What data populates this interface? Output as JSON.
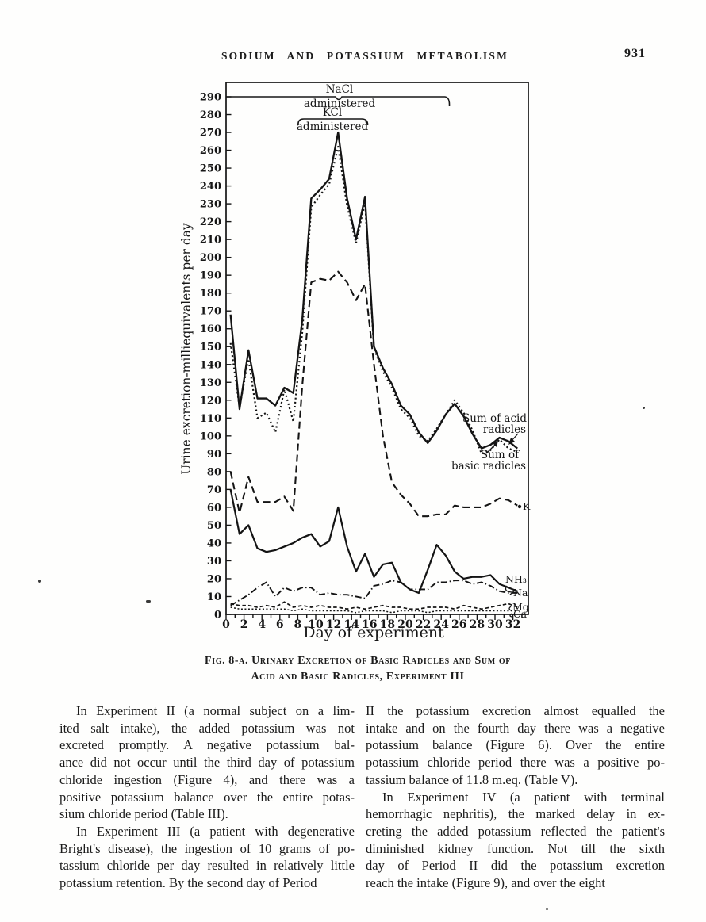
{
  "header": {
    "running_head": "SODIUM AND POTASSIUM METABOLISM",
    "page_number": "931"
  },
  "figure": {
    "annotations": {
      "nacl_line1": "NaCl",
      "nacl_line2": "administered",
      "kcl_line1": "KCl",
      "kcl_line2": "administered"
    },
    "series_labels": {
      "acid_line1": "Sum of acid",
      "acid_line2": "radicles",
      "basic_line1": "Sum of",
      "basic_line2": "basic radicles",
      "k": "K",
      "nh3": "NH₃",
      "na": "Na",
      "mg": "Mg",
      "ca": "Ca"
    },
    "y_axis_label": "Urine excretion-milliequivalents per day",
    "x_axis_label": "Day of experiment",
    "caption_line1": "Fig. 8-a.  Urinary Excretion of Basic Radicles and Sum of",
    "caption_line2": "Acid and Basic Radicles, Experiment III"
  },
  "chart_data": {
    "type": "line",
    "title": "",
    "xlabel": "Day of experiment",
    "ylabel": "Urine excretion-milliequivalents per day",
    "xlim": [
      0,
      33.7
    ],
    "ylim": [
      0,
      298
    ],
    "grid": false,
    "legend_position": "labels-at-line-ends-right",
    "x_ticks": [
      0,
      2,
      4,
      6,
      8,
      10,
      12,
      14,
      16,
      18,
      20,
      22,
      24,
      26,
      28,
      30,
      32
    ],
    "y_ticks": [
      0,
      10,
      20,
      30,
      40,
      50,
      60,
      70,
      80,
      90,
      100,
      110,
      120,
      130,
      140,
      150,
      160,
      170,
      180,
      190,
      200,
      210,
      220,
      230,
      240,
      250,
      260,
      270,
      280,
      290
    ],
    "x": [
      0.5,
      1.5,
      2.5,
      3.5,
      4.5,
      5.5,
      6.5,
      7.5,
      8.5,
      9.5,
      10.5,
      11.5,
      12.5,
      13.5,
      14.5,
      15.5,
      16.5,
      17.5,
      18.5,
      19.5,
      20.5,
      21.5,
      22.5,
      23.5,
      24.5,
      25.5,
      26.5,
      27.5,
      28.5,
      29.5,
      30.5,
      31.5,
      32.5
    ],
    "series": [
      {
        "key": "acid",
        "name": "Sum of acid radicles",
        "line_style": "solid",
        "values": [
          168,
          115,
          148,
          121,
          121,
          117,
          127,
          124,
          165,
          233,
          238,
          244,
          270,
          233,
          210,
          234,
          150,
          138,
          129,
          117,
          112,
          102,
          96,
          103,
          112,
          118,
          111,
          101,
          93,
          95,
          99,
          97,
          93
        ]
      },
      {
        "key": "basic",
        "name": "Sum of basic radicles",
        "line_style": "dotted",
        "values": [
          152,
          116,
          143,
          110,
          113,
          102,
          126,
          108,
          158,
          228,
          235,
          241,
          262,
          229,
          208,
          231,
          149,
          136,
          127,
          115,
          110,
          100,
          97,
          104,
          112,
          120,
          113,
          103,
          90,
          92,
          98,
          93,
          91
        ]
      },
      {
        "key": "k",
        "name": "K",
        "line_style": "long-dash",
        "values": [
          80,
          57,
          77,
          63,
          63,
          63,
          66,
          58,
          128,
          186,
          188,
          187,
          192,
          186,
          176,
          185,
          140,
          100,
          74,
          67,
          62,
          55,
          55,
          56,
          56,
          61,
          60,
          60,
          60,
          62,
          65,
          64,
          61
        ]
      },
      {
        "key": "nh3",
        "name": "NH₃",
        "line_style": "solid",
        "values": [
          70,
          45,
          50,
          37,
          35,
          36,
          38,
          40,
          43,
          45,
          38,
          41,
          60,
          38,
          24,
          34,
          21,
          28,
          29,
          18,
          14,
          12,
          25,
          39,
          33,
          24,
          20,
          21,
          21,
          22,
          17,
          15,
          13
        ]
      },
      {
        "key": "na",
        "name": "Na",
        "line_style": "dash-dot",
        "values": [
          5,
          8,
          11,
          15,
          18,
          10,
          15,
          13,
          15,
          15,
          11,
          12,
          11,
          11,
          10,
          9,
          16,
          17,
          19,
          18,
          14,
          14,
          14,
          18,
          18,
          19,
          19,
          17,
          18,
          16,
          13,
          12,
          12
        ]
      },
      {
        "key": "mg",
        "name": "Mg",
        "line_style": "short-dash",
        "values": [
          6,
          5,
          5,
          4,
          5,
          4,
          7,
          4,
          5,
          4,
          5,
          4,
          4,
          3,
          4,
          3,
          4,
          5,
          4,
          4,
          3,
          3,
          4,
          4,
          4,
          3,
          5,
          4,
          3,
          4,
          5,
          6,
          4
        ]
      },
      {
        "key": "ca",
        "name": "Ca",
        "line_style": "dense-dash",
        "values": [
          4,
          3,
          3,
          3,
          3,
          3,
          3,
          2,
          3,
          2,
          2,
          2,
          2,
          2,
          1,
          2,
          2,
          2,
          1,
          2,
          2,
          2,
          1,
          2,
          2,
          2,
          2,
          2,
          2,
          2,
          2,
          2,
          2
        ]
      }
    ],
    "annotations": [
      {
        "text": "NaCl administered",
        "span_days": [
          0,
          25
        ],
        "at_value": 290
      },
      {
        "text": "KCl administered",
        "span_days": [
          8,
          15.8
        ],
        "at_value": 278
      }
    ]
  },
  "body": {
    "columns": [
      {
        "paragraphs": [
          {
            "indent": true,
            "lines": [
              "In Experiment II (a normal subject on a lim-",
              "ited salt intake), the added potassium was not",
              "excreted promptly.  A negative potassium bal-",
              "ance did not occur until the third day of potassium",
              "chloride ingestion (Figure 4), and there was a",
              "positive potassium balance over the entire potas-",
              "sium chloride period (Table III)."
            ]
          },
          {
            "indent": true,
            "lines": [
              "In Experiment III (a patient with degenerative",
              "Bright's disease), the ingestion of 10 grams of po-",
              "tassium chloride per day resulted in relatively little",
              "potassium retention.  By the second day of Period"
            ]
          }
        ]
      },
      {
        "paragraphs": [
          {
            "indent": false,
            "lines": [
              "II the potassium excretion almost equalled the",
              "intake and on the fourth day there was a negative",
              "potassium balance (Figure 6).  Over the entire",
              "potassium chloride period there was a positive po-",
              "tassium balance of 11.8 m.eq. (Table V)."
            ]
          },
          {
            "indent": true,
            "lines": [
              "In Experiment IV (a patient with terminal",
              "hemorrhagic nephritis), the marked delay in ex-",
              "creting the added potassium reflected the patient's",
              "diminished kidney function.  Not till the sixth",
              "day of Period II did the potassium excretion",
              "reach the intake (Figure 9), and over the eight"
            ]
          }
        ]
      }
    ]
  }
}
